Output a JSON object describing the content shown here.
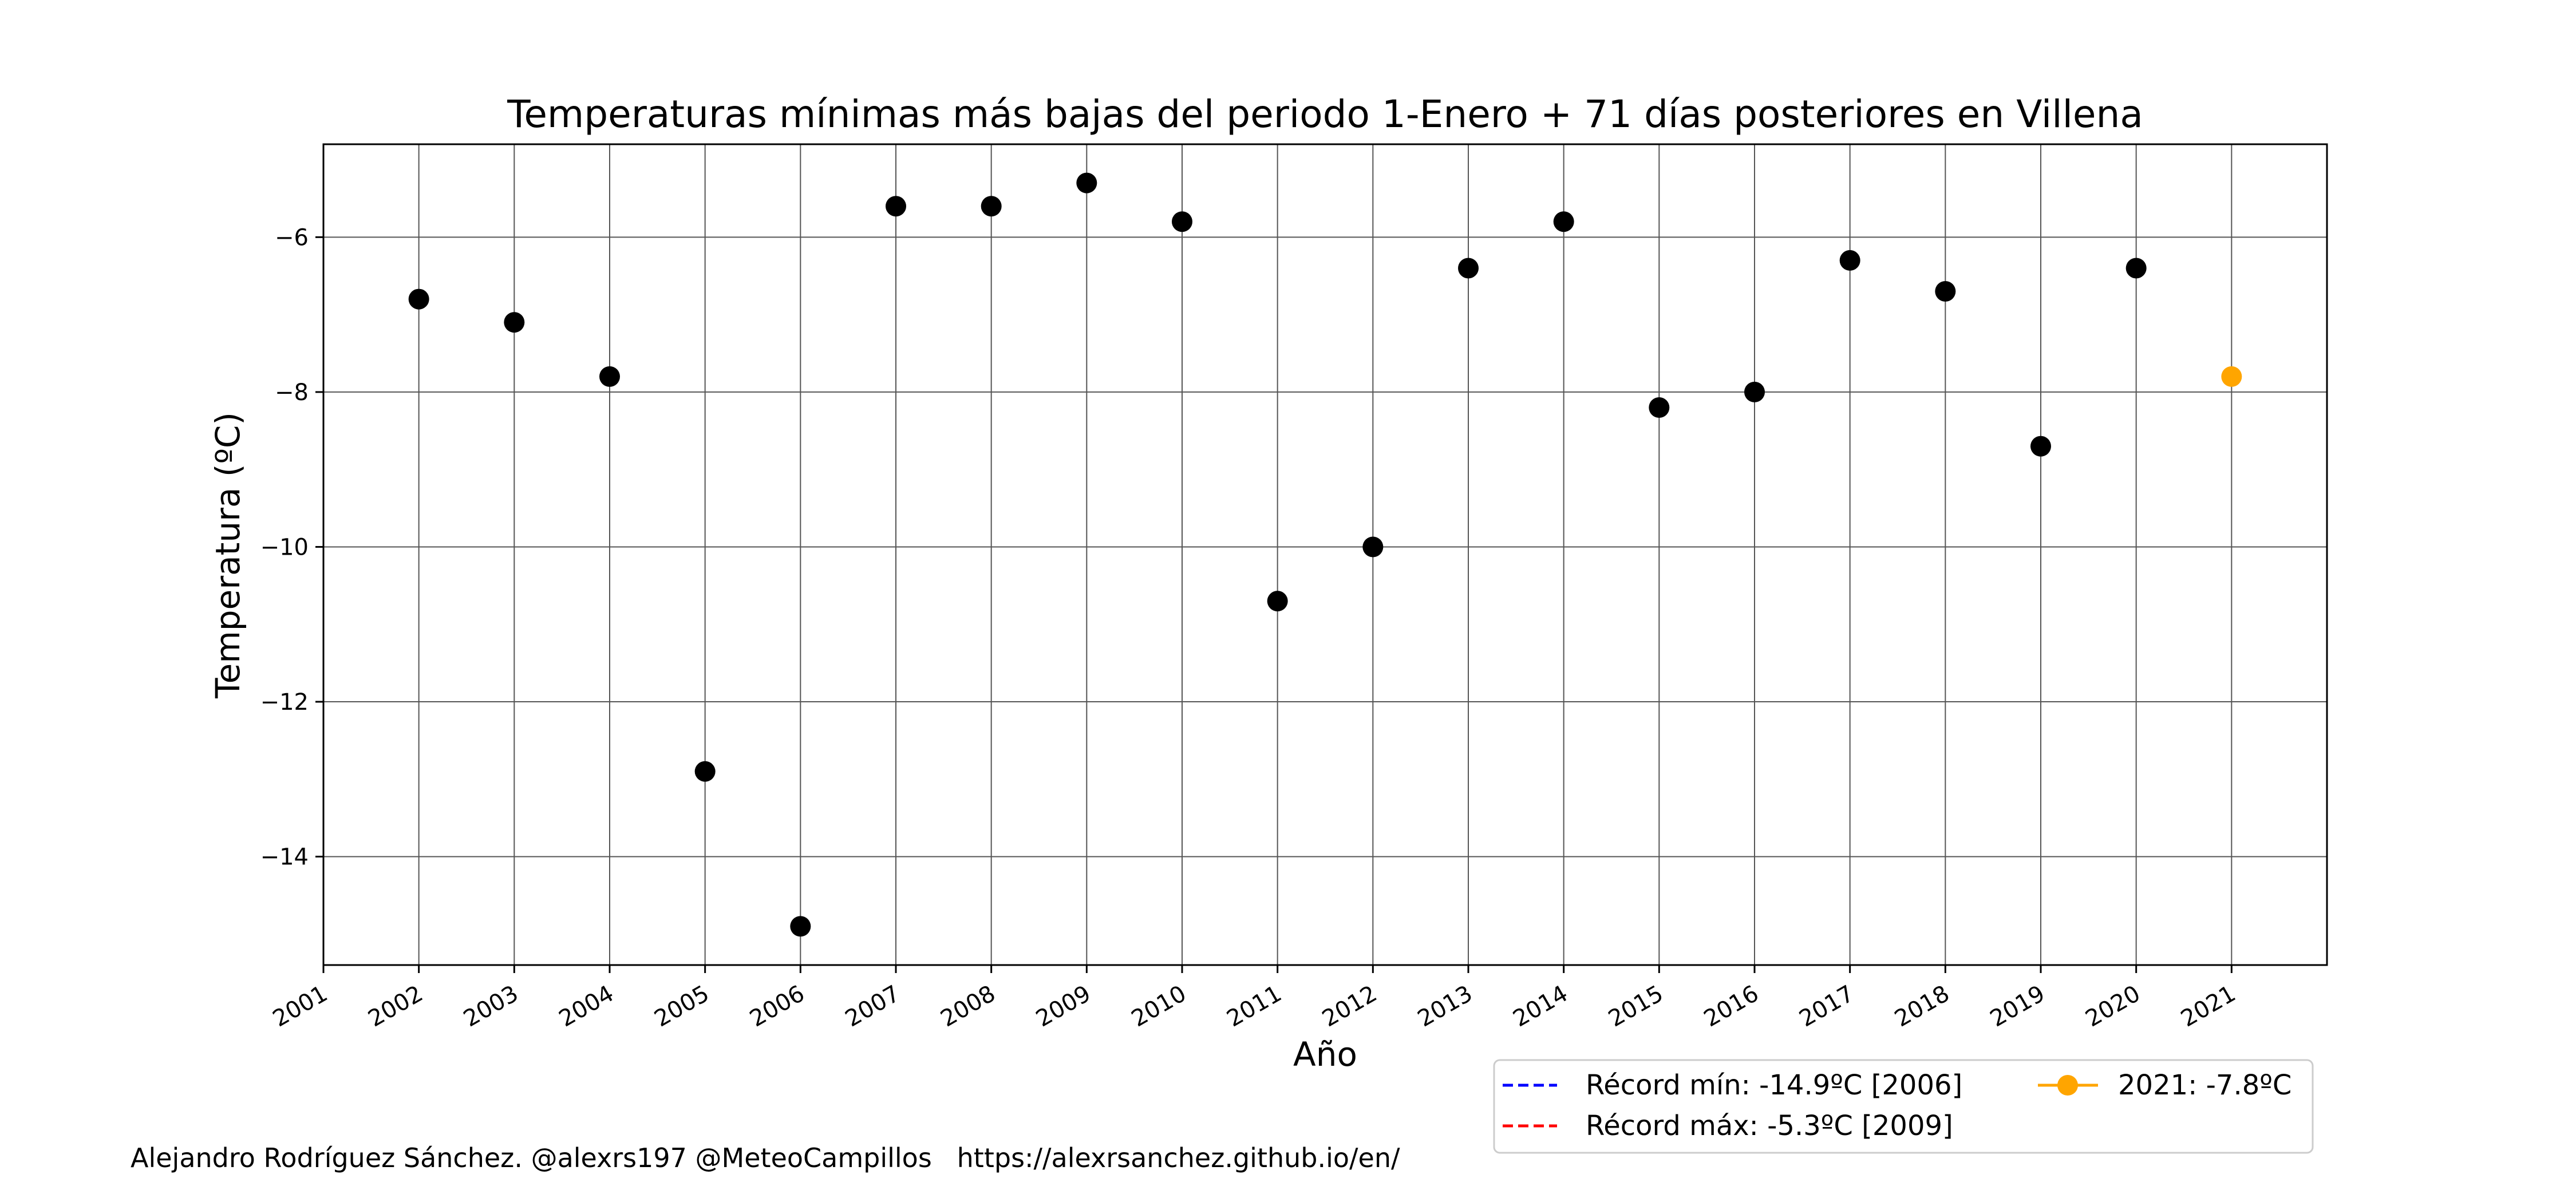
{
  "chart_data": {
    "type": "scatter",
    "title": "Temperaturas mínimas más bajas del periodo 1-Enero + 71 días posteriores en Villena",
    "xlabel": "Año",
    "ylabel": "Temperatura (ºC)",
    "xlim": [
      2001,
      2022
    ],
    "ylim": [
      -15.4,
      -4.8
    ],
    "x_ticks": [
      "2001",
      "2002",
      "2003",
      "2004",
      "2005",
      "2006",
      "2007",
      "2008",
      "2009",
      "2010",
      "2011",
      "2012",
      "2013",
      "2014",
      "2015",
      "2016",
      "2017",
      "2018",
      "2019",
      "2020",
      "2021"
    ],
    "y_ticks": [
      -14,
      -12,
      -10,
      -8,
      -6
    ],
    "grid": true,
    "series": [
      {
        "color": "#000000",
        "x": [
          2002,
          2003,
          2004,
          2005,
          2006,
          2007,
          2008,
          2009,
          2010,
          2011,
          2012,
          2013,
          2014,
          2015,
          2016,
          2017,
          2018,
          2019,
          2020
        ],
        "values": [
          -6.8,
          -7.1,
          -7.8,
          -12.9,
          -14.9,
          -5.6,
          -5.6,
          -5.3,
          -5.8,
          -10.7,
          -10.0,
          -6.4,
          -5.8,
          -8.2,
          -8.0,
          -6.3,
          -6.7,
          -8.7,
          -6.4
        ]
      },
      {
        "name": "2021: -7.8ºC",
        "color": "#FFA500",
        "x": [
          2021
        ],
        "values": [
          -7.8
        ]
      }
    ],
    "legend": {
      "placement": "bottom-right",
      "entries": [
        {
          "label": "Récord mín: -14.9ºC [2006]",
          "color": "#0000FF",
          "style": "dashed"
        },
        {
          "label": "Récord máx: -5.3ºC [2009]",
          "color": "#FF0000",
          "style": "dashed"
        },
        {
          "label": "2021: -7.8ºC",
          "color": "#FFA500",
          "style": "line-marker"
        }
      ]
    }
  },
  "footer": {
    "credit": "Alejandro Rodríguez Sánchez. @alexrs197 @MeteoCampillos   https://alexrsanchez.github.io/en/"
  }
}
